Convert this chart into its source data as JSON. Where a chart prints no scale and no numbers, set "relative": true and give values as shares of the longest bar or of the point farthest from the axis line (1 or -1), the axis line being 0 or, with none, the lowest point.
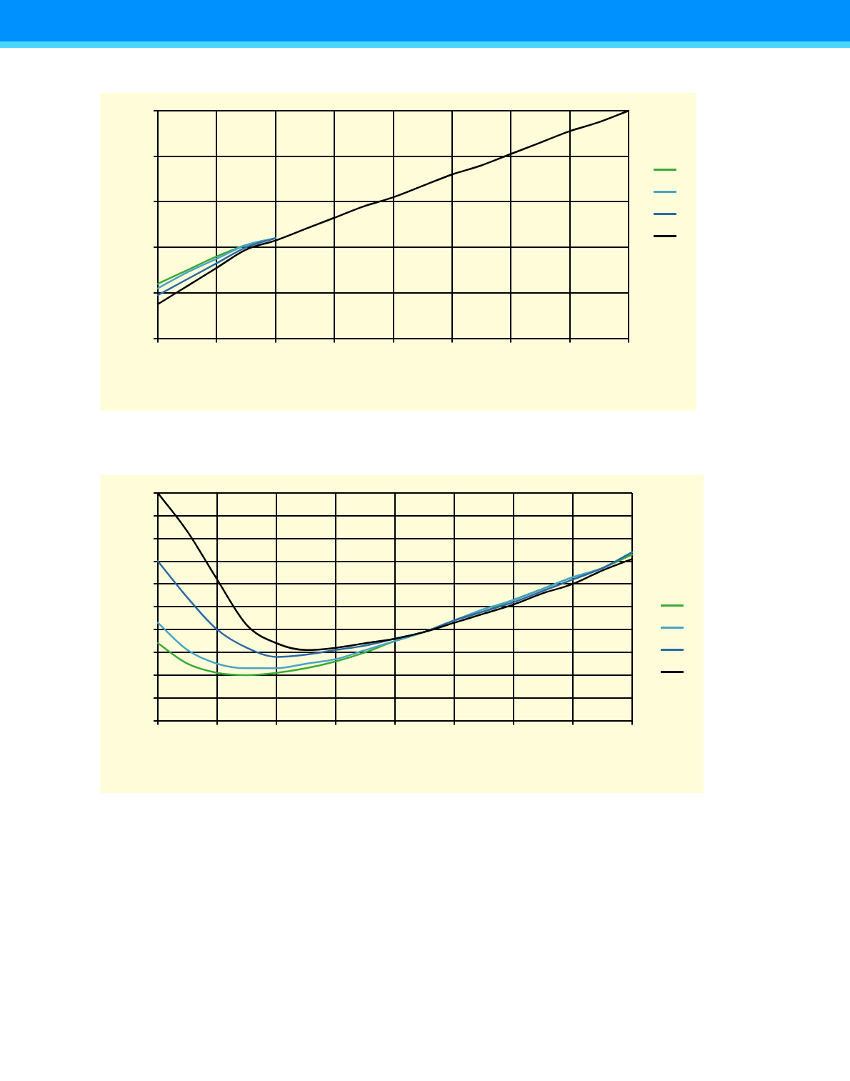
{
  "chart_data": [
    {
      "type": "line",
      "relative": true,
      "categories": [
        null,
        null,
        null,
        null,
        null,
        null,
        null,
        null,
        null,
        null,
        null,
        null,
        null,
        null,
        null,
        null,
        null
      ],
      "grid": true,
      "marker": "none",
      "line_style": "solid",
      "series": [
        {
          "color": "#3aaa35",
          "values": [
            0.24,
            0.3,
            0.36,
            0.41,
            0.44,
            null,
            null,
            null,
            null,
            null,
            null,
            null,
            null,
            null,
            null,
            null,
            null
          ]
        },
        {
          "color": "#4aa3c8",
          "values": [
            0.22,
            0.29,
            0.35,
            0.41,
            0.44,
            null,
            null,
            null,
            null,
            null,
            null,
            null,
            null,
            null,
            null,
            null,
            null
          ]
        },
        {
          "color": "#2a6aa5",
          "values": [
            0.19,
            0.26,
            0.33,
            0.4,
            0.44,
            null,
            null,
            null,
            null,
            null,
            null,
            null,
            null,
            null,
            null,
            null,
            null
          ]
        },
        {
          "color": "#000000",
          "values": [
            0.15,
            0.23,
            0.31,
            0.39,
            0.43,
            0.48,
            0.53,
            0.58,
            0.62,
            0.67,
            0.72,
            0.76,
            0.81,
            0.86,
            0.91,
            0.95,
            1
          ]
        }
      ]
    },
    {
      "type": "line",
      "relative": true,
      "categories": [
        null,
        null,
        null,
        null,
        null,
        null,
        null,
        null,
        null,
        null,
        null,
        null,
        null,
        null,
        null,
        null,
        null
      ],
      "grid": true,
      "marker": "none",
      "line_style": "solid",
      "series": [
        {
          "color": "#3aaa35",
          "values": [
            0.34,
            0.25,
            0.21,
            0.2,
            0.21,
            0.23,
            0.26,
            0.3,
            0.35,
            0.39,
            0.44,
            0.48,
            0.53,
            0.58,
            0.63,
            0.67,
            0.73
          ]
        },
        {
          "color": "#4aa3c8",
          "values": [
            0.43,
            0.31,
            0.25,
            0.23,
            0.23,
            0.25,
            0.27,
            0.31,
            0.35,
            0.39,
            0.44,
            0.49,
            0.53,
            0.58,
            0.63,
            0.67,
            0.74
          ]
        },
        {
          "color": "#2a6aa5",
          "values": [
            0.7,
            0.54,
            0.4,
            0.32,
            0.28,
            0.29,
            0.31,
            0.33,
            0.36,
            0.39,
            0.44,
            0.48,
            0.52,
            0.57,
            0.62,
            0.67,
            0.74
          ]
        },
        {
          "color": "#000000",
          "values": [
            1,
            0.83,
            0.62,
            0.42,
            0.34,
            0.31,
            0.32,
            0.34,
            0.36,
            0.39,
            0.43,
            0.47,
            0.51,
            0.56,
            0.6,
            0.66,
            0.71
          ]
        }
      ]
    }
  ]
}
